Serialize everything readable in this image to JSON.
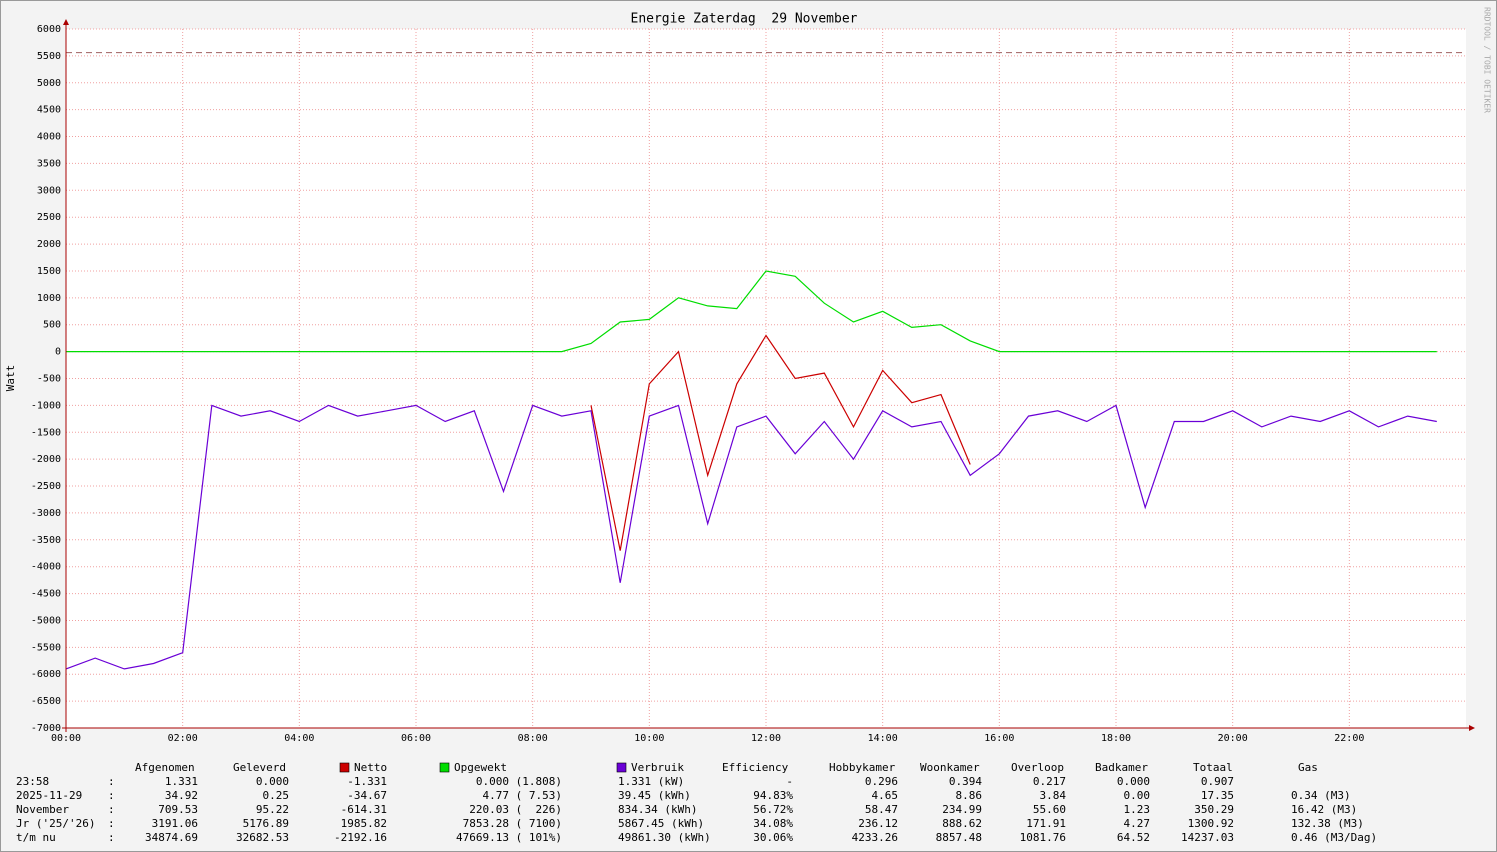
{
  "chart_data": {
    "type": "line",
    "title": "Energie Zaterdag  29 November",
    "y_label": "Watt",
    "watermark": "RRDTOOL / TOBI OETIKER",
    "xlim": [
      0,
      24
    ],
    "ylim": [
      -7000,
      6000
    ],
    "xticks": [
      {
        "value": 0,
        "label": "00:00"
      },
      {
        "value": 2,
        "label": "02:00"
      },
      {
        "value": 4,
        "label": "04:00"
      },
      {
        "value": 6,
        "label": "06:00"
      },
      {
        "value": 8,
        "label": "08:00"
      },
      {
        "value": 10,
        "label": "10:00"
      },
      {
        "value": 12,
        "label": "12:00"
      },
      {
        "value": 14,
        "label": "14:00"
      },
      {
        "value": 16,
        "label": "16:00"
      },
      {
        "value": 18,
        "label": "18:00"
      },
      {
        "value": 20,
        "label": "20:00"
      },
      {
        "value": 22,
        "label": "22:00"
      }
    ],
    "yticks": [
      -7000,
      -6500,
      -6000,
      -5500,
      -5000,
      -4500,
      -4000,
      -3500,
      -3000,
      -2500,
      -2000,
      -1500,
      -1000,
      -500,
      0,
      500,
      1000,
      1500,
      2000,
      2500,
      3000,
      3500,
      4000,
      4500,
      5000,
      5500,
      6000
    ],
    "grid": true,
    "limit_line": 5560,
    "x": [
      0,
      0.5,
      1,
      1.5,
      2,
      2.5,
      3,
      3.5,
      4,
      4.5,
      5,
      5.5,
      6,
      6.5,
      7,
      7.5,
      8,
      8.5,
      9,
      9.5,
      10,
      10.5,
      11,
      11.5,
      12,
      12.5,
      13,
      13.5,
      14,
      14.5,
      15,
      15.5,
      16,
      16.5,
      17,
      17.5,
      18,
      18.5,
      19,
      19.5,
      20,
      20.5,
      21,
      21.5,
      22,
      22.5,
      23,
      23.5
    ],
    "series": [
      {
        "name": "Netto",
        "color": "#cc0000",
        "values": [
          null,
          null,
          null,
          null,
          null,
          null,
          null,
          null,
          null,
          null,
          null,
          null,
          null,
          null,
          null,
          null,
          null,
          null,
          -1000,
          -3700,
          -600,
          0,
          -2300,
          -600,
          300,
          -500,
          -400,
          -1400,
          -350,
          -950,
          -800,
          -2100,
          null,
          null,
          null,
          null,
          null,
          null,
          null,
          null,
          null,
          null,
          null,
          null,
          null,
          null,
          null,
          null
        ]
      },
      {
        "name": "Opgewekt",
        "color": "#00dd00",
        "values": [
          0,
          0,
          0,
          0,
          0,
          0,
          0,
          0,
          0,
          0,
          0,
          0,
          0,
          0,
          0,
          0,
          0,
          0,
          150,
          550,
          600,
          1000,
          850,
          800,
          1500,
          1400,
          900,
          550,
          750,
          450,
          500,
          200,
          0,
          0,
          0,
          0,
          0,
          0,
          0,
          0,
          0,
          0,
          0,
          0,
          0,
          0,
          0,
          0
        ]
      },
      {
        "name": "Verbruik",
        "color": "#6a00d6",
        "values": [
          -5900,
          -5700,
          -5900,
          -5800,
          -5600,
          -1000,
          -1200,
          -1100,
          -1300,
          -1000,
          -1200,
          -1100,
          -1000,
          -1300,
          -1100,
          -2600,
          -1000,
          -1200,
          -1100,
          -4300,
          -1200,
          -1000,
          -3200,
          -1400,
          -1200,
          -1900,
          -1300,
          -2000,
          -1100,
          -1400,
          -1300,
          -2300,
          -1900,
          -1200,
          -1100,
          -1300,
          -1000,
          -2900,
          -1300,
          -1300,
          -1100,
          -1400,
          -1200,
          -1300,
          -1100,
          -1400,
          -1200,
          -1300
        ]
      }
    ]
  },
  "table": {
    "separator": ":",
    "columns": [
      "Afgenomen",
      "Geleverd",
      "Efficiency",
      "Hobbykamer",
      "Woonkamer",
      "Overloop",
      "Badkamer",
      "Totaal",
      "Gas"
    ],
    "rows": [
      [
        "23:58",
        "1.331",
        "0.000",
        "-1.331",
        "0.000 (1.808)",
        "1.331 (kW)",
        "-",
        "0.296",
        "0.394",
        "0.217",
        "0.000",
        "0.907"
      ],
      [
        "2025-11-29",
        "34.92",
        "0.25",
        "-34.67",
        "4.77 ( 7.53)",
        "39.45 (kWh)",
        "94.83%",
        "4.65",
        "8.86",
        "3.84",
        "0.00",
        "17.35",
        "0.34 (M3)"
      ],
      [
        "November",
        "709.53",
        "95.22",
        "-614.31",
        "220.03 (  226)",
        "834.34 (kWh)",
        "56.72%",
        "58.47",
        "234.99",
        "55.60",
        "1.23",
        "350.29",
        "16.42 (M3)"
      ],
      [
        "Jr ('25/'26)",
        "3191.06",
        "5176.89",
        "1985.82",
        "7853.28 ( 7100)",
        "5867.45 (kWh)",
        "34.08%",
        "236.12",
        "888.62",
        "171.91",
        "4.27",
        "1300.92",
        "132.38 (M3)"
      ],
      [
        "t/m nu",
        "34874.69",
        "32682.53",
        "-2192.16",
        "47669.13 ( 101%)",
        "49861.30 (kWh)",
        "30.06%",
        "4233.26",
        "8857.48",
        "1081.76",
        "64.52",
        "14237.03",
        "0.46 (M3/Dag)"
      ]
    ]
  }
}
